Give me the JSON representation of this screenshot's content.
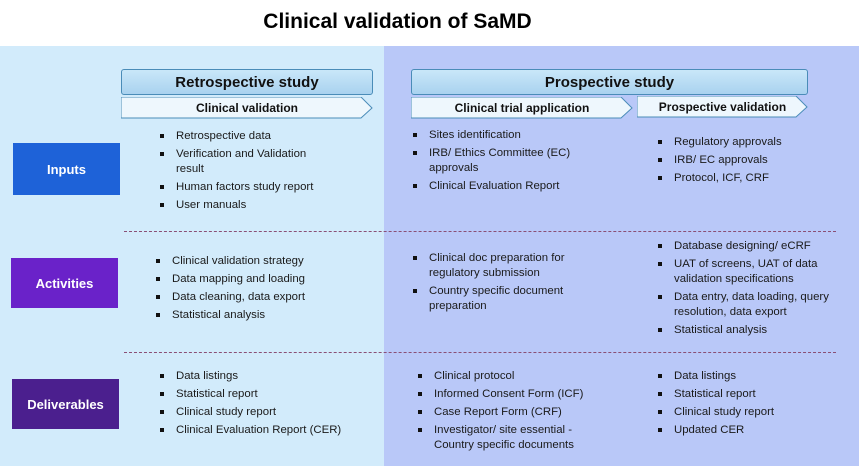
{
  "title": "Clinical validation of SaMD",
  "retrospective": {
    "header": "Retrospective study",
    "phase": "Clinical validation",
    "inputs": [
      "Retrospective data",
      "Verification and Validation result",
      "Human factors study report",
      "User manuals"
    ],
    "activities": [
      "Clinical validation strategy",
      "Data mapping and loading",
      "Data cleaning, data export",
      "Statistical analysis"
    ],
    "deliverables": [
      "Data listings",
      "Statistical report",
      "Clinical study report",
      "Clinical Evaluation Report (CER)"
    ]
  },
  "prospective": {
    "header": "Prospective study",
    "phase_a": "Clinical trial application",
    "phase_b": "Prospective validation",
    "a_inputs": [
      "Sites identification",
      "IRB/ Ethics Committee (EC) approvals",
      "Clinical Evaluation Report"
    ],
    "a_activities": [
      "Clinical doc preparation for regulatory  submission",
      "Country specific document preparation"
    ],
    "a_deliverables": [
      "Clinical protocol",
      "Informed Consent Form (ICF)",
      "Case Report Form (CRF)",
      "Investigator/ site essential - Country specific documents"
    ],
    "b_inputs": [
      "Regulatory approvals",
      "IRB/ EC approvals",
      "Protocol, ICF, CRF"
    ],
    "b_activities": [
      "Database designing/ eCRF",
      "UAT of screens, UAT of data validation specifications",
      "Data entry, data loading, query resolution, data export",
      "Statistical analysis"
    ],
    "b_deliverables": [
      "Data listings",
      "Statistical report",
      "Clinical study report",
      "Updated CER"
    ]
  },
  "rows": {
    "inputs": "Inputs",
    "activities": "Activities",
    "deliverables": "Deliverables"
  },
  "colors": {
    "inputs": "#1e62d8",
    "activities": "#6a22c9",
    "deliverables": "#4b1f8e",
    "left_panel": "#d2ebfb",
    "right_panel": "#b9c8f8"
  }
}
